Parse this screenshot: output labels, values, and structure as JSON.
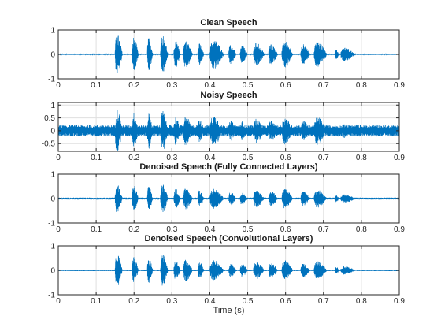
{
  "chart_data": [
    {
      "type": "line",
      "title": "Clean Speech",
      "xlabel": "",
      "ylabel": "",
      "xlim": [
        0,
        0.9
      ],
      "ylim": [
        -1,
        1
      ],
      "xticks": [
        0,
        0.1,
        0.2,
        0.3,
        0.4,
        0.5,
        0.6,
        0.7,
        0.8,
        0.9
      ],
      "xtick_labels": [
        "0",
        "0.1",
        "0.2",
        "0.3",
        "0.4",
        "0.5",
        "0.6",
        "0.7",
        "0.8",
        "0.9"
      ],
      "yticks": [
        -1,
        0,
        1
      ],
      "ytick_labels": [
        "-1",
        "0",
        "1"
      ],
      "grid": true,
      "color": "#0072BD",
      "noise_floor": 0.02,
      "envelope": [
        [
          0.15,
          0.17,
          0.85
        ],
        [
          0.195,
          0.212,
          0.72
        ],
        [
          0.235,
          0.25,
          0.7
        ],
        [
          0.27,
          0.29,
          0.8
        ],
        [
          0.305,
          0.323,
          0.55
        ],
        [
          0.33,
          0.355,
          0.58
        ],
        [
          0.368,
          0.385,
          0.45
        ],
        [
          0.4,
          0.438,
          0.6
        ],
        [
          0.45,
          0.47,
          0.4
        ],
        [
          0.48,
          0.5,
          0.38
        ],
        [
          0.515,
          0.545,
          0.48
        ],
        [
          0.555,
          0.58,
          0.42
        ],
        [
          0.59,
          0.62,
          0.55
        ],
        [
          0.64,
          0.665,
          0.42
        ],
        [
          0.675,
          0.71,
          0.55
        ],
        [
          0.73,
          0.742,
          0.2
        ],
        [
          0.745,
          0.785,
          0.28
        ]
      ]
    },
    {
      "type": "line",
      "title": "Noisy Speech",
      "xlabel": "",
      "ylabel": "",
      "xlim": [
        0,
        0.9
      ],
      "ylim": [
        -0.8,
        1.1
      ],
      "xticks": [
        0,
        0.1,
        0.2,
        0.3,
        0.4,
        0.5,
        0.6,
        0.7,
        0.8,
        0.9
      ],
      "xtick_labels": [
        "0",
        "0.1",
        "0.2",
        "0.3",
        "0.4",
        "0.5",
        "0.6",
        "0.7",
        "0.8",
        "0.9"
      ],
      "yticks": [
        -0.5,
        0,
        0.5,
        1
      ],
      "ytick_labels": [
        "-0.5",
        "0",
        "0.5",
        "1"
      ],
      "grid": true,
      "color": "#0072BD",
      "noise_floor": 0.22,
      "envelope": [
        [
          0.15,
          0.17,
          0.85
        ],
        [
          0.195,
          0.212,
          0.72
        ],
        [
          0.235,
          0.25,
          0.7
        ],
        [
          0.27,
          0.29,
          0.8
        ],
        [
          0.305,
          0.323,
          0.55
        ],
        [
          0.33,
          0.355,
          0.58
        ],
        [
          0.368,
          0.385,
          0.45
        ],
        [
          0.4,
          0.438,
          0.6
        ],
        [
          0.45,
          0.47,
          0.4
        ],
        [
          0.48,
          0.5,
          0.38
        ],
        [
          0.515,
          0.545,
          0.48
        ],
        [
          0.555,
          0.58,
          0.42
        ],
        [
          0.59,
          0.62,
          0.55
        ],
        [
          0.64,
          0.665,
          0.42
        ],
        [
          0.675,
          0.71,
          0.55
        ],
        [
          0.73,
          0.742,
          0.2
        ],
        [
          0.745,
          0.785,
          0.28
        ]
      ]
    },
    {
      "type": "line",
      "title": "Denoised Speech (Fully Connected Layers)",
      "xlabel": "",
      "ylabel": "",
      "xlim": [
        0,
        0.9
      ],
      "ylim": [
        -1,
        1
      ],
      "xticks": [
        0,
        0.1,
        0.2,
        0.3,
        0.4,
        0.5,
        0.6,
        0.7,
        0.8,
        0.9
      ],
      "xtick_labels": [
        "0",
        "0.1",
        "0.2",
        "0.3",
        "0.4",
        "0.5",
        "0.6",
        "0.7",
        "0.8",
        "0.9"
      ],
      "yticks": [
        -1,
        0,
        1
      ],
      "ytick_labels": [
        "-1",
        "0",
        "1"
      ],
      "grid": true,
      "color": "#0072BD",
      "noise_floor": 0.04,
      "envelope": [
        [
          0.15,
          0.17,
          0.6
        ],
        [
          0.195,
          0.212,
          0.55
        ],
        [
          0.235,
          0.25,
          0.5
        ],
        [
          0.27,
          0.29,
          0.62
        ],
        [
          0.305,
          0.323,
          0.42
        ],
        [
          0.33,
          0.355,
          0.45
        ],
        [
          0.368,
          0.385,
          0.35
        ],
        [
          0.4,
          0.438,
          0.42
        ],
        [
          0.45,
          0.47,
          0.3
        ],
        [
          0.48,
          0.5,
          0.28
        ],
        [
          0.515,
          0.545,
          0.36
        ],
        [
          0.555,
          0.58,
          0.32
        ],
        [
          0.59,
          0.62,
          0.42
        ],
        [
          0.64,
          0.665,
          0.3
        ],
        [
          0.675,
          0.71,
          0.38
        ],
        [
          0.73,
          0.742,
          0.15
        ],
        [
          0.745,
          0.785,
          0.18
        ]
      ]
    },
    {
      "type": "line",
      "title": "Denoised Speech (Convolutional Layers)",
      "xlabel": "Time (s)",
      "ylabel": "",
      "xlim": [
        0,
        0.9
      ],
      "ylim": [
        -1,
        1
      ],
      "xticks": [
        0,
        0.1,
        0.2,
        0.3,
        0.4,
        0.5,
        0.6,
        0.7,
        0.8,
        0.9
      ],
      "xtick_labels": [
        "0",
        "0.1",
        "0.2",
        "0.3",
        "0.4",
        "0.5",
        "0.6",
        "0.7",
        "0.8",
        "0.9"
      ],
      "yticks": [
        -1,
        0,
        1
      ],
      "ytick_labels": [
        "-1",
        "0",
        "1"
      ],
      "grid": true,
      "color": "#0072BD",
      "noise_floor": 0.03,
      "envelope": [
        [
          0.15,
          0.17,
          0.65
        ],
        [
          0.195,
          0.212,
          0.55
        ],
        [
          0.235,
          0.25,
          0.55
        ],
        [
          0.27,
          0.29,
          0.65
        ],
        [
          0.305,
          0.323,
          0.42
        ],
        [
          0.33,
          0.355,
          0.45
        ],
        [
          0.368,
          0.385,
          0.35
        ],
        [
          0.4,
          0.438,
          0.42
        ],
        [
          0.45,
          0.47,
          0.3
        ],
        [
          0.48,
          0.5,
          0.28
        ],
        [
          0.515,
          0.545,
          0.36
        ],
        [
          0.555,
          0.58,
          0.32
        ],
        [
          0.59,
          0.62,
          0.42
        ],
        [
          0.64,
          0.665,
          0.3
        ],
        [
          0.675,
          0.71,
          0.38
        ],
        [
          0.73,
          0.742,
          0.15
        ],
        [
          0.745,
          0.785,
          0.18
        ]
      ]
    }
  ]
}
